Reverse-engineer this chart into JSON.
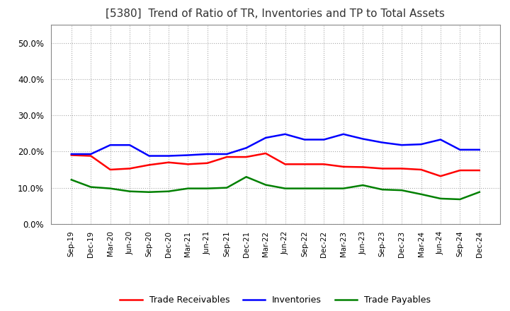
{
  "title": "[5380]  Trend of Ratio of TR, Inventories and TP to Total Assets",
  "labels": [
    "Sep-19",
    "Dec-19",
    "Mar-20",
    "Jun-20",
    "Sep-20",
    "Dec-20",
    "Mar-21",
    "Jun-21",
    "Sep-21",
    "Dec-21",
    "Mar-22",
    "Jun-22",
    "Sep-22",
    "Dec-22",
    "Mar-23",
    "Jun-23",
    "Sep-23",
    "Dec-23",
    "Mar-24",
    "Jun-24",
    "Sep-24",
    "Dec-24"
  ],
  "trade_receivables": [
    0.19,
    0.188,
    0.15,
    0.153,
    0.163,
    0.17,
    0.165,
    0.168,
    0.185,
    0.185,
    0.195,
    0.165,
    0.165,
    0.165,
    0.158,
    0.157,
    0.153,
    0.153,
    0.15,
    0.132,
    0.148,
    0.148
  ],
  "inventories": [
    0.193,
    0.193,
    0.218,
    0.218,
    0.188,
    0.188,
    0.19,
    0.193,
    0.193,
    0.21,
    0.238,
    0.248,
    0.233,
    0.233,
    0.248,
    0.235,
    0.225,
    0.218,
    0.22,
    0.233,
    0.205,
    0.205
  ],
  "trade_payables": [
    0.122,
    0.102,
    0.098,
    0.09,
    0.088,
    0.09,
    0.098,
    0.098,
    0.1,
    0.13,
    0.108,
    0.098,
    0.098,
    0.098,
    0.098,
    0.107,
    0.095,
    0.093,
    0.082,
    0.07,
    0.068,
    0.088
  ],
  "tr_color": "#ff0000",
  "inv_color": "#0000ff",
  "tp_color": "#008000",
  "ylim": [
    0.0,
    0.55
  ],
  "yticks": [
    0.0,
    0.1,
    0.2,
    0.3,
    0.4,
    0.5
  ],
  "background_color": "#ffffff",
  "grid_color": "#aaaaaa",
  "title_fontsize": 11
}
